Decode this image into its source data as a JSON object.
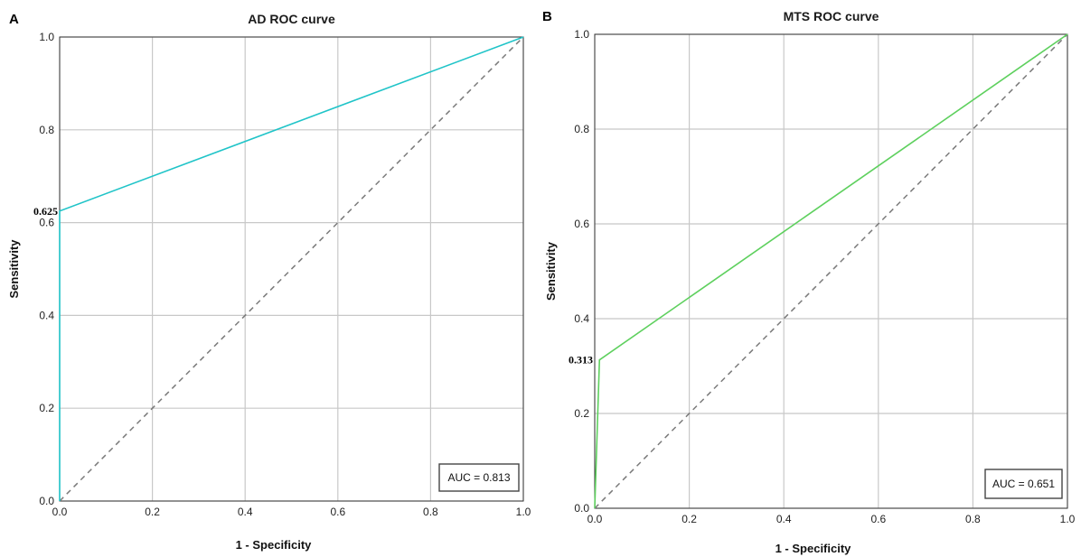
{
  "chart_data": [
    {
      "type": "line",
      "panel_label": "A",
      "title": "AD ROC curve",
      "xlabel": "1 - Specificity",
      "ylabel": "Sensitivity",
      "xlim": [
        0,
        1
      ],
      "ylim": [
        0,
        1
      ],
      "xticks": [
        "0.0",
        "0.2",
        "0.4",
        "0.6",
        "0.8",
        "1.0"
      ],
      "yticks": [
        "0.0",
        "0.2",
        "0.4",
        "0.6",
        "0.8",
        "1.0"
      ],
      "grid": true,
      "series": [
        {
          "x": [
            0,
            0,
            1
          ],
          "y": [
            0,
            0.625,
            1
          ],
          "color": "#20c4c8"
        }
      ],
      "reference_line": {
        "x": [
          0,
          1
        ],
        "y": [
          0,
          1
        ],
        "style": "dashed",
        "color": "#7a7a7a"
      },
      "annotation": {
        "text": "0.625",
        "y": 0.625
      },
      "auc_label": "AUC = 0.813",
      "auc_placement": "bottom-right"
    },
    {
      "type": "line",
      "panel_label": "B",
      "title": "MTS ROC curve",
      "xlabel": "1 - Specificity",
      "ylabel": "Sensitivity",
      "xlim": [
        0,
        1
      ],
      "ylim": [
        0,
        1
      ],
      "xticks": [
        "0.0",
        "0.2",
        "0.4",
        "0.6",
        "0.8",
        "1.0"
      ],
      "yticks": [
        "0.0",
        "0.2",
        "0.4",
        "0.6",
        "0.8",
        "1.0"
      ],
      "grid": true,
      "series": [
        {
          "x": [
            0,
            0.01,
            1
          ],
          "y": [
            0,
            0.313,
            1
          ],
          "color": "#5ed05e"
        }
      ],
      "reference_line": {
        "x": [
          0,
          1
        ],
        "y": [
          0,
          1
        ],
        "style": "dashed",
        "color": "#7a7a7a"
      },
      "annotation": {
        "text": "0.313",
        "y": 0.313
      },
      "auc_label": "AUC = 0.651",
      "auc_placement": "bottom-right"
    }
  ]
}
